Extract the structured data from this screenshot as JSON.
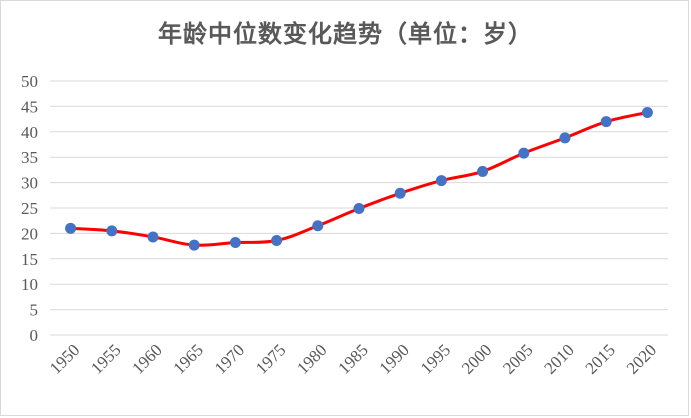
{
  "chart_data": {
    "type": "line",
    "title": "年龄中位数变化趋势（单位：岁）",
    "xlabel": "",
    "ylabel": "",
    "categories": [
      "1950",
      "1955",
      "1960",
      "1965",
      "1970",
      "1975",
      "1980",
      "1985",
      "1990",
      "1995",
      "2000",
      "2005",
      "2010",
      "2015",
      "2020"
    ],
    "series": [
      {
        "values": [
          21.0,
          20.5,
          19.3,
          17.7,
          18.2,
          18.6,
          21.5,
          24.9,
          27.9,
          30.4,
          32.2,
          35.8,
          38.8,
          42.0,
          43.8
        ]
      }
    ],
    "ylim": [
      0,
      50
    ],
    "yticks": [
      "0",
      "5",
      "10",
      "15",
      "20",
      "25",
      "30",
      "35",
      "40",
      "45",
      "50"
    ],
    "grid": true,
    "legend": "none",
    "colors": {
      "line": "#ff0000",
      "marker": "#4472c4",
      "grid": "#d9d9d9",
      "text": "#595959"
    }
  }
}
